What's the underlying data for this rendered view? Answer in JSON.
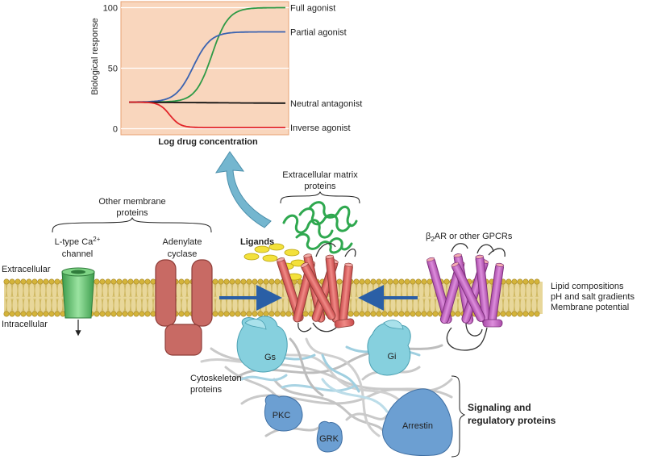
{
  "chart_data": {
    "type": "line",
    "xlabel": "Log drug concentration",
    "ylabel": "Biological response",
    "yticks": [
      0,
      50,
      100
    ],
    "ylim": [
      -5,
      105
    ],
    "series": [
      {
        "name": "Full agonist",
        "color": "#2e9a46",
        "baseline": 22,
        "plateau": 100,
        "midpoint": 0.53,
        "steepness": 19
      },
      {
        "name": "Partial agonist",
        "color": "#3b63b0",
        "baseline": 22,
        "plateau": 80,
        "midpoint": 0.41,
        "steepness": 18
      },
      {
        "name": "Neutral antagonist",
        "color": "#111111",
        "baseline": 22,
        "plateau": 21,
        "midpoint": 0.5,
        "steepness": 4
      },
      {
        "name": "Inverse agonist",
        "color": "#e2262b",
        "baseline": 22,
        "plateau": 1,
        "midpoint": 0.26,
        "steepness": 30
      }
    ]
  },
  "labels": {
    "other_membrane_proteins": [
      "Other membrane",
      "proteins"
    ],
    "ltype_channel": [
      "L-type Ca",
      "2+",
      "channel"
    ],
    "adenylate_cyclase": [
      "Adenylate",
      "cyclase"
    ],
    "ligands": "Ligands",
    "ecm_proteins": [
      "Extracellular matrix",
      "proteins"
    ],
    "b2ar": [
      "β",
      "2",
      "AR or other GPCRs"
    ],
    "extracellular": "Extracellular",
    "intracellular": "Intracellular",
    "lipid_comp": [
      "Lipid compositions",
      "pH and salt gradients",
      "Membrane potential"
    ],
    "cytoskeleton": [
      "Cytoskeleton",
      "proteins"
    ],
    "gs": "Gs",
    "gi": "Gi",
    "pkc": "PKC",
    "grk": "GRK",
    "arrestin": "Arrestin",
    "signaling": [
      "Signaling and",
      "regulatory proteins"
    ]
  },
  "colors": {
    "chart_bg": "#f9d6bd",
    "chart_border": "#e8a173",
    "membrane_head": "#d4b43a",
    "membrane_tail": "#e8d79a",
    "receptor": "#e06866",
    "gpcr": "#c46cc6",
    "adenylate_cyclase": "#c86a64",
    "channel": "#5fbf6a",
    "gprotein": "#86d0de",
    "signal_protein": "#6c9fd2",
    "ecm": "#2fa84f",
    "ligand": "#f3e13b",
    "arrow_blue": "#2a5fa6",
    "curved_arrow": "#74b6cf"
  }
}
